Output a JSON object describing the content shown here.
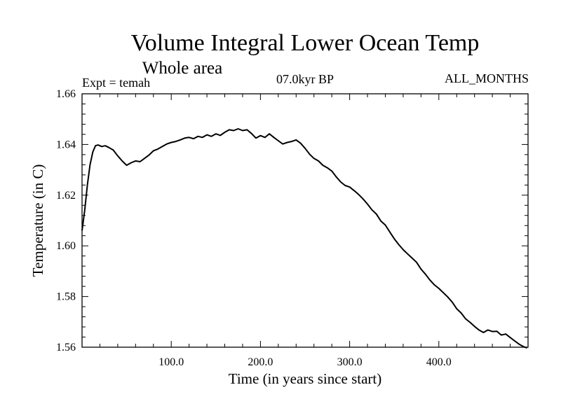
{
  "chart_data": {
    "type": "line",
    "title": "Volume Integral Lower Ocean Temp",
    "subtitle": "Whole area",
    "info_left": "Expt = temah",
    "info_center": "07.0kyr BP",
    "info_right": "ALL_MONTHS",
    "xlabel": "Time (in years since start)",
    "ylabel": "Temperature (in C)",
    "xlim": [
      0,
      500
    ],
    "ylim": [
      1.56,
      1.66
    ],
    "xticks": [
      {
        "value": 100,
        "label": "100.0"
      },
      {
        "value": 200,
        "label": "200.0"
      },
      {
        "value": 300,
        "label": "300.0"
      },
      {
        "value": 400,
        "label": "400.0"
      }
    ],
    "yticks": [
      {
        "value": 1.56,
        "label": "1.56"
      },
      {
        "value": 1.58,
        "label": "1.58"
      },
      {
        "value": 1.6,
        "label": "1.60"
      },
      {
        "value": 1.62,
        "label": "1.62"
      },
      {
        "value": 1.64,
        "label": "1.64"
      },
      {
        "value": 1.66,
        "label": "1.66"
      }
    ],
    "series": [
      {
        "name": "Temperature",
        "color": "#000000",
        "x": [
          0,
          3,
          6,
          9,
          12,
          15,
          18,
          22,
          26,
          30,
          35,
          40,
          45,
          50,
          55,
          60,
          65,
          70,
          75,
          80,
          85,
          90,
          95,
          100,
          105,
          110,
          115,
          120,
          125,
          130,
          135,
          140,
          145,
          150,
          155,
          160,
          165,
          170,
          175,
          180,
          185,
          190,
          195,
          200,
          205,
          210,
          215,
          220,
          225,
          230,
          235,
          240,
          245,
          250,
          255,
          260,
          265,
          270,
          275,
          280,
          285,
          290,
          295,
          300,
          305,
          310,
          315,
          320,
          325,
          330,
          335,
          340,
          345,
          350,
          355,
          360,
          365,
          370,
          375,
          380,
          385,
          390,
          395,
          400,
          405,
          410,
          415,
          420,
          425,
          430,
          435,
          440,
          445,
          450,
          455,
          460,
          465,
          470,
          475,
          480,
          485,
          490,
          495,
          499
        ],
        "values": [
          1.606,
          1.614,
          1.624,
          1.632,
          1.637,
          1.6395,
          1.6398,
          1.6392,
          1.6395,
          1.6388,
          1.6378,
          1.6355,
          1.6335,
          1.6318,
          1.6328,
          1.6335,
          1.6332,
          1.6345,
          1.6358,
          1.6375,
          1.6382,
          1.6392,
          1.6402,
          1.6408,
          1.6412,
          1.6418,
          1.6425,
          1.6428,
          1.6423,
          1.6432,
          1.6428,
          1.6438,
          1.6432,
          1.6442,
          1.6436,
          1.6448,
          1.6458,
          1.6455,
          1.6462,
          1.6455,
          1.6458,
          1.6443,
          1.6425,
          1.6435,
          1.6428,
          1.6442,
          1.6428,
          1.6415,
          1.6402,
          1.6408,
          1.6412,
          1.6418,
          1.6405,
          1.6385,
          1.6362,
          1.6345,
          1.6335,
          1.6318,
          1.6308,
          1.6295,
          1.6272,
          1.6252,
          1.6238,
          1.6232,
          1.6218,
          1.6203,
          1.6185,
          1.6165,
          1.6142,
          1.6125,
          1.6098,
          1.6082,
          1.6055,
          1.6028,
          1.6005,
          1.5985,
          1.5968,
          1.5952,
          1.5935,
          1.5908,
          1.5888,
          1.5865,
          1.5846,
          1.5832,
          1.5815,
          1.5798,
          1.5778,
          1.5752,
          1.5735,
          1.5712,
          1.5698,
          1.5682,
          1.5668,
          1.5658,
          1.5668,
          1.5662,
          1.5663,
          1.5648,
          1.5652,
          1.5638,
          1.5625,
          1.5612,
          1.5602,
          1.5597
        ]
      }
    ]
  }
}
